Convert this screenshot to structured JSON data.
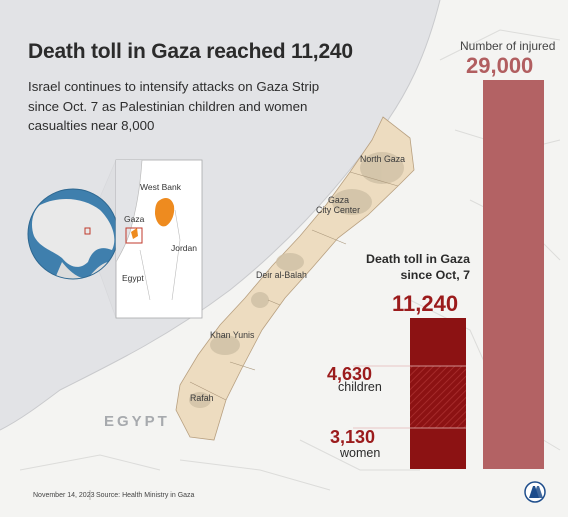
{
  "header": {
    "title": "Death toll in Gaza reached 11,240",
    "subtitle": "Israel continues to intensify attacks on Gaza Strip since Oct. 7 as Palestinian children and women casualties near 8,000"
  },
  "injured": {
    "label": "Number of injured",
    "value": "29,000",
    "amount": 29000
  },
  "deaths": {
    "label": "Death toll in Gaza since Oct, 7",
    "value": "11,240",
    "amount": 11240,
    "children_value": "4,630",
    "children_label": "children",
    "children_amount": 4630,
    "women_value": "3,130",
    "women_label": "women",
    "women_amount": 3130
  },
  "inset_map": {
    "labels": {
      "west_bank": "West Bank",
      "gaza": "Gaza",
      "jordan": "Jordan",
      "egypt": "Egypt"
    }
  },
  "gaza_map": {
    "cities": {
      "north_gaza": "North Gaza",
      "gaza_city_1": "Gaza",
      "gaza_city_2": "City Center",
      "deir_al_balah": "Deir al-Balah",
      "khan_yunis": "Khan Yunis",
      "rafah": "Rafah"
    },
    "country_label": "EGYPT"
  },
  "footer": {
    "date": "November 14, 2023",
    "source": "Source: Health Ministry in Gaza",
    "logo_text": "AA"
  },
  "colors": {
    "background": "#f4f4f2",
    "sea": "#e2e3e6",
    "gaza": "#eddcc0",
    "injured_bar": "#b36264",
    "deaths_bar": "#8c1213",
    "accent_red": "#9b1b1c",
    "highlight_orange": "#ee8b1f",
    "logo_blue": "#1f4e8c"
  }
}
